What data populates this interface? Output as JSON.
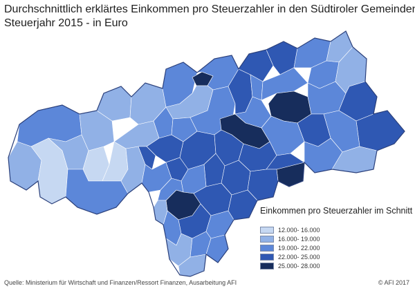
{
  "title": {
    "line1": "Durchschnittlich erklärtes Einkommen pro Steuerzahler in den Südtiroler Gemeinden",
    "line2": "Steuerjahr 2015 - in Euro"
  },
  "legend": {
    "title": "Einkommen pro Steuerzahler im Schnitt",
    "items": [
      {
        "label": "12.000- 16.000",
        "color": "#c6d8f2"
      },
      {
        "label": "16.000- 19.000",
        "color": "#91b1e6"
      },
      {
        "label": "19.000- 22.000",
        "color": "#5c87d9"
      },
      {
        "label": "22.000- 25.000",
        "color": "#2f58b3"
      },
      {
        "label": "25.000- 28.000",
        "color": "#172d5c"
      }
    ]
  },
  "source": "Quelle: Ministerium für Wirtschaft und Finanzen/Ressort Finanzen, Ausarbeitung AFI",
  "copyright": "© AFI 2017"
}
